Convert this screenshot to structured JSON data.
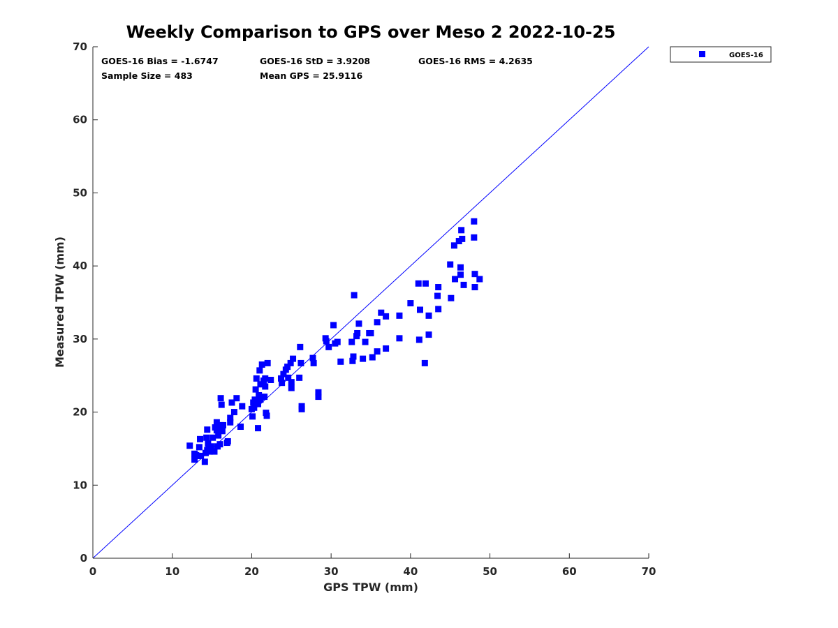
{
  "chart_data": {
    "type": "scatter",
    "title": "Weekly Comparison to GPS over Meso 2 2022-10-25",
    "xlabel": "GPS TPW (mm)",
    "ylabel": "Measured TPW (mm)",
    "xlim": [
      0,
      70
    ],
    "ylim": [
      0,
      70
    ],
    "xticks": [
      "0",
      "10",
      "20",
      "30",
      "40",
      "50",
      "60",
      "70"
    ],
    "yticks": [
      "0",
      "10",
      "20",
      "30",
      "40",
      "50",
      "60",
      "70"
    ],
    "grid": false,
    "legend_position": "outside top-right",
    "reference_line": {
      "name": "1:1 line",
      "x": [
        0,
        70
      ],
      "y": [
        0,
        70
      ]
    },
    "stats": {
      "bias": "GOES-16 Bias = -1.6747",
      "std": "GOES-16 StD = 3.9208",
      "rms": "GOES-16 RMS = 4.2635",
      "sample_size": "Sample Size = 483",
      "mean_gps": "Mean GPS = 25.9116"
    },
    "series": [
      {
        "name": "GOES-16",
        "color": "#0000ff",
        "marker": "square",
        "x": [
          12.2,
          12.8,
          12.8,
          13.0,
          13.2,
          13.4,
          13.5,
          13.6,
          14.1,
          14.2,
          14.3,
          14.4,
          14.4,
          14.5,
          14.6,
          14.7,
          14.9,
          15.1,
          15.3,
          15.4,
          15.6,
          15.6,
          15.7,
          15.8,
          15.9,
          16.0,
          16.1,
          16.1,
          16.2,
          16.3,
          16.4,
          16.9,
          17.0,
          17.3,
          17.3,
          17.5,
          17.8,
          18.1,
          18.6,
          18.8,
          20.0,
          20.1,
          20.2,
          20.3,
          20.4,
          20.5,
          20.6,
          20.8,
          20.8,
          20.9,
          21.0,
          21.1,
          21.1,
          21.3,
          21.5,
          21.6,
          21.7,
          21.7,
          21.8,
          21.9,
          22.0,
          22.4,
          23.7,
          23.8,
          24.0,
          24.3,
          24.5,
          24.6,
          24.9,
          25.0,
          25.0,
          25.2,
          26.0,
          26.1,
          26.2,
          26.3,
          26.3,
          27.7,
          27.8,
          28.4,
          28.4,
          29.3,
          29.4,
          29.7,
          30.3,
          30.5,
          30.8,
          31.2,
          32.6,
          32.7,
          32.8,
          32.9,
          33.2,
          33.3,
          33.5,
          34.0,
          34.3,
          34.8,
          35.0,
          35.2,
          35.8,
          35.8,
          36.3,
          36.9,
          36.9,
          38.6,
          38.6,
          40.0,
          41.0,
          41.1,
          41.2,
          41.8,
          41.9,
          42.3,
          42.3,
          43.4,
          43.5,
          43.5,
          45.0,
          45.1,
          45.5,
          45.6,
          46.1,
          46.3,
          46.3,
          46.4,
          46.5,
          46.7,
          48.0,
          48.0,
          48.1,
          48.1,
          48.7
        ],
        "y": [
          15.4,
          14.3,
          13.5,
          14.1,
          14.0,
          15.2,
          16.3,
          14.0,
          13.2,
          14.4,
          16.5,
          17.6,
          14.8,
          15.7,
          15.1,
          14.6,
          15.3,
          16.5,
          14.6,
          17.9,
          18.6,
          17.5,
          15.3,
          16.8,
          18.0,
          15.6,
          18.2,
          21.9,
          21.0,
          17.4,
          18.2,
          15.8,
          16.0,
          19.2,
          18.6,
          21.3,
          20.0,
          21.9,
          18.0,
          20.8,
          20.4,
          19.4,
          21.3,
          20.6,
          21.7,
          23.1,
          24.6,
          17.8,
          21.1,
          22.3,
          25.7,
          23.8,
          21.7,
          26.5,
          24.3,
          22.1,
          24.6,
          23.5,
          19.9,
          19.5,
          26.7,
          24.4,
          24.6,
          24.0,
          25.2,
          25.8,
          26.2,
          24.7,
          26.7,
          24.1,
          23.3,
          27.3,
          24.7,
          28.9,
          26.7,
          20.8,
          20.4,
          27.4,
          26.7,
          22.7,
          22.1,
          30.1,
          29.7,
          28.9,
          31.9,
          29.4,
          29.6,
          26.9,
          29.6,
          27.0,
          27.6,
          36.0,
          30.4,
          30.8,
          32.1,
          27.3,
          29.6,
          30.8,
          30.8,
          27.5,
          32.3,
          28.3,
          33.6,
          33.1,
          28.7,
          30.1,
          33.2,
          34.9,
          37.6,
          29.9,
          34.0,
          26.7,
          37.6,
          30.6,
          33.2,
          35.9,
          34.1,
          37.1,
          40.2,
          35.6,
          42.8,
          38.2,
          43.4,
          39.8,
          38.8,
          44.9,
          43.7,
          37.4,
          46.1,
          43.9,
          38.9,
          37.1,
          38.2
        ]
      }
    ]
  }
}
